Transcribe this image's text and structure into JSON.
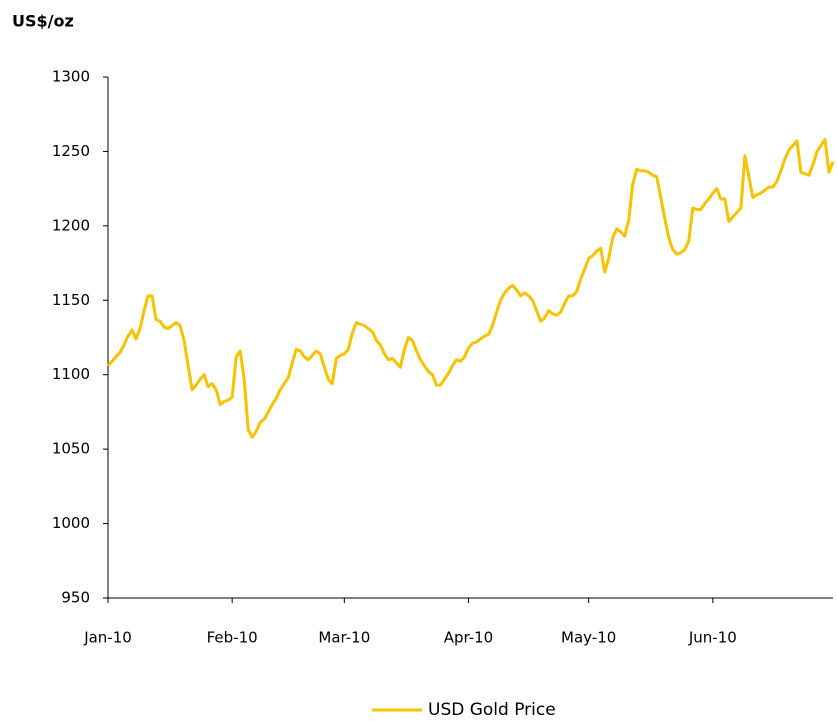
{
  "chart_data": {
    "type": "line",
    "title": "US$/oz",
    "categories": [
      "Jan-10",
      null,
      null,
      null,
      null,
      null,
      null,
      null,
      null,
      null,
      null,
      null,
      null,
      null,
      null,
      null,
      null,
      null,
      null,
      null,
      null,
      null,
      null,
      null,
      null,
      null,
      null,
      null,
      null,
      null,
      null,
      "Feb-10",
      null,
      null,
      null,
      null,
      null,
      null,
      null,
      null,
      null,
      null,
      null,
      null,
      null,
      null,
      null,
      null,
      null,
      null,
      null,
      null,
      null,
      null,
      null,
      null,
      null,
      null,
      null,
      "Mar-10",
      null,
      null,
      null,
      null,
      null,
      null,
      null,
      null,
      null,
      null,
      null,
      null,
      null,
      null,
      null,
      null,
      null,
      null,
      null,
      null,
      null,
      null,
      null,
      null,
      null,
      null,
      null,
      null,
      null,
      null,
      "Apr-10",
      null,
      null,
      null,
      null,
      null,
      null,
      null,
      null,
      null,
      null,
      null,
      null,
      null,
      null,
      null,
      null,
      null,
      null,
      null,
      null,
      null,
      null,
      null,
      null,
      null,
      null,
      null,
      null,
      null,
      "May-10",
      null,
      null,
      null,
      null,
      null,
      null,
      null,
      null,
      null,
      null,
      null,
      null,
      null,
      null,
      null,
      null,
      null,
      null,
      null,
      null,
      null,
      null,
      null,
      null,
      null,
      null,
      null,
      null,
      null,
      null,
      "Jun-10",
      null,
      null,
      null,
      null,
      null,
      null,
      null,
      null,
      null,
      null,
      null,
      null,
      null,
      null,
      null,
      null,
      null,
      null,
      null,
      null,
      null,
      null,
      null,
      null,
      null,
      null,
      null,
      null,
      null,
      null
    ],
    "series": [
      {
        "name": "USD Gold Price",
        "color": "#f7c200",
        "values": [
          1106,
          1109,
          1112,
          1115,
          1120,
          1126,
          1130,
          1124,
          1131,
          1143,
          1153,
          1153,
          1137,
          1136,
          1132,
          1131,
          1133,
          1135,
          1133,
          1123,
          1106,
          1090,
          1093,
          1097,
          1100,
          1092,
          1094,
          1090,
          1080,
          1082,
          1083,
          1085,
          1112,
          1116,
          1097,
          1063,
          1058,
          1062,
          1068,
          1070,
          1075,
          1080,
          1084,
          1090,
          1094,
          1098,
          1108,
          1117,
          1116,
          1112,
          1110,
          1113,
          1116,
          1114,
          1105,
          1097,
          1094,
          1111,
          1113,
          1114,
          1117,
          1128,
          1135,
          1134,
          1133,
          1131,
          1129,
          1123,
          1120,
          1114,
          1110,
          1111,
          1108,
          1105,
          1117,
          1125,
          1123,
          1116,
          1110,
          1106,
          1102,
          1100,
          1093,
          1093,
          1097,
          1101,
          1106,
          1110,
          1109,
          1112,
          1118,
          1121,
          1122,
          1124,
          1126,
          1127,
          1133,
          1142,
          1150,
          1155,
          1158,
          1160,
          1157,
          1153,
          1155,
          1153,
          1150,
          1143,
          1136,
          1138,
          1143,
          1141,
          1140,
          1142,
          1148,
          1153,
          1153,
          1156,
          1164,
          1171,
          1178,
          1180,
          1183,
          1185,
          1169,
          1178,
          1192,
          1198,
          1196,
          1193,
          1204,
          1228,
          1238,
          1237,
          1237,
          1236,
          1234,
          1233,
          1219,
          1205,
          1192,
          1184,
          1181,
          1182,
          1184,
          1190,
          1212,
          1211,
          1211,
          1215,
          1218,
          1222,
          1225,
          1218,
          1218,
          1203,
          1206,
          1209,
          1212,
          1247,
          1233,
          1219,
          1221,
          1222,
          1224,
          1226,
          1226,
          1230,
          1237,
          1245,
          1251,
          1254,
          1257,
          1236,
          1235,
          1234,
          1241,
          1250,
          1254,
          1258,
          1236,
          1243
        ]
      }
    ],
    "ylim": [
      950,
      1300
    ],
    "yticks": [
      950,
      1000,
      1050,
      1100,
      1150,
      1200,
      1250,
      1300
    ],
    "grid": false,
    "legend": "bottom"
  }
}
